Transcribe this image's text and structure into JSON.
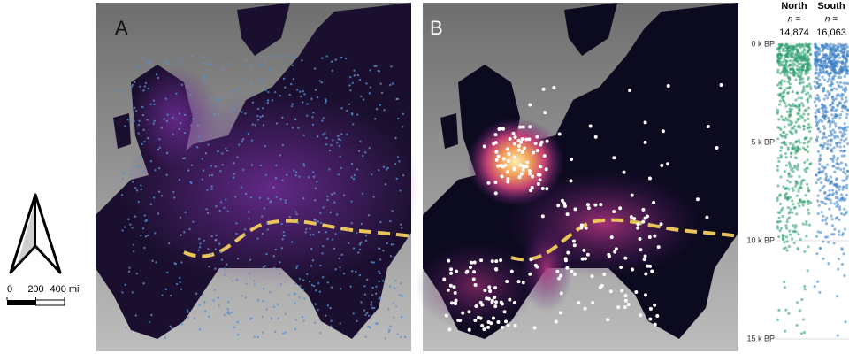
{
  "panels": [
    {
      "label": "A"
    },
    {
      "label": "B"
    }
  ],
  "scale_bar": {
    "xlim": [
      0,
      400
    ],
    "ticks": [
      0,
      200,
      {
        "value": 400,
        "label": "400 mi"
      }
    ]
  },
  "strip": {
    "groups": [
      {
        "name": "North",
        "n_label": "n =",
        "n": "14,874",
        "color": "#2a9d6e"
      },
      {
        "name": "South",
        "n_label": "n =",
        "n": "16,063",
        "color": "#3a7fc4"
      }
    ],
    "ylim": [
      0,
      15
    ],
    "yticks": [
      {
        "value": 0,
        "label": "0 k BP"
      },
      {
        "value": 5,
        "label": "5 k BP"
      },
      {
        "value": 10,
        "label": "10 k BP"
      },
      {
        "value": 15,
        "label": "15 k BP"
      }
    ]
  }
}
